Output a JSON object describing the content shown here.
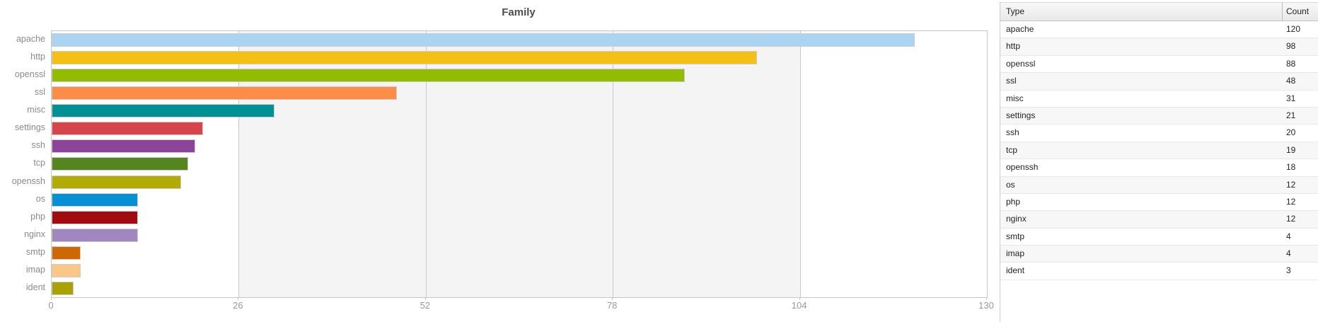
{
  "chart_data": {
    "type": "bar",
    "orientation": "horizontal",
    "title": "Family",
    "categories": [
      "apache",
      "http",
      "openssl",
      "ssl",
      "misc",
      "settings",
      "ssh",
      "tcp",
      "openssh",
      "os",
      "php",
      "nginx",
      "smtp",
      "imap",
      "ident"
    ],
    "values": [
      120,
      98,
      88,
      48,
      31,
      21,
      20,
      19,
      18,
      12,
      12,
      12,
      4,
      4,
      3
    ],
    "bar_colors": [
      "#abd3f2",
      "#f3c013",
      "#93bb01",
      "#fc8d46",
      "#019094",
      "#d54549",
      "#8c4499",
      "#55851f",
      "#b2ab04",
      "#0590d6",
      "#a30b12",
      "#a187bf",
      "#ce6802",
      "#fac788",
      "#aaa205"
    ],
    "xlabel": "",
    "ylabel": "",
    "xlim": [
      0,
      130
    ],
    "x_ticks": [
      0,
      26,
      52,
      78,
      104,
      130
    ],
    "grid": true,
    "legend_position": "none",
    "shaded_band": {
      "from": 26,
      "to": 104,
      "color": "#f4f4f4"
    }
  },
  "table": {
    "columns": [
      "Type",
      "Count"
    ],
    "rows": [
      {
        "type": "apache",
        "count": "120"
      },
      {
        "type": "http",
        "count": "98"
      },
      {
        "type": "openssl",
        "count": "88"
      },
      {
        "type": "ssl",
        "count": "48"
      },
      {
        "type": "misc",
        "count": "31"
      },
      {
        "type": "settings",
        "count": "21"
      },
      {
        "type": "ssh",
        "count": "20"
      },
      {
        "type": "tcp",
        "count": "19"
      },
      {
        "type": "openssh",
        "count": "18"
      },
      {
        "type": "os",
        "count": "12"
      },
      {
        "type": "php",
        "count": "12"
      },
      {
        "type": "nginx",
        "count": "12"
      },
      {
        "type": "smtp",
        "count": "4"
      },
      {
        "type": "imap",
        "count": "4"
      },
      {
        "type": "ident",
        "count": "3"
      }
    ]
  }
}
